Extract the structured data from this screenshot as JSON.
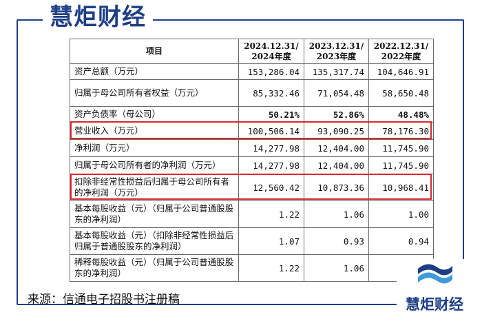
{
  "logo": {
    "text": "慧炬财经"
  },
  "source_caption": "来源：信通电子招股书注册稿",
  "table": {
    "header": {
      "item": "项目",
      "col1": "2024.12.31/\n2024年度",
      "col2": "2023.12.31/\n2023年度",
      "col3": "2022.12.31/\n2022年度"
    },
    "rows": [
      {
        "label": "资产总额（万元）",
        "v": [
          "153,286.04",
          "135,317.74",
          "104,646.91"
        ]
      },
      {
        "label": "归属于母公司所有者权益（万元）",
        "v": [
          "85,332.46",
          "71,054.48",
          "58,650.48"
        ]
      },
      {
        "label": "资产负债率（母公司）",
        "v": [
          "50.21%",
          "52.86%",
          "48.48%"
        ]
      },
      {
        "label": "营业收入（万元）",
        "v": [
          "100,506.14",
          "93,090.25",
          "78,176.30"
        ]
      },
      {
        "label": "净利润（万元）",
        "v": [
          "14,277.98",
          "12,404.00",
          "11,745.90"
        ]
      },
      {
        "label": "归属于母公司所有者的净利润（万元）",
        "v": [
          "14,277.98",
          "12,404.00",
          "11,745.90"
        ]
      },
      {
        "label": "扣除非经常性损益后归属于母公司所有者的净利润（万元）",
        "v": [
          "12,560.42",
          "10,873.36",
          "10,968.41"
        ]
      },
      {
        "label": "基本每股收益（元）（归属于公司普通股股东的净利润）",
        "v": [
          "1.22",
          "1.06",
          "1.00"
        ]
      },
      {
        "label": "基本每股收益（元）（扣除非经常性损益后归属于普通股股东的净利润）",
        "v": [
          "1.07",
          "0.93",
          "0.94"
        ]
      },
      {
        "label": "稀释每股收益（元）（归属于公司普通股股东的净利润）",
        "v": [
          "1.22",
          "1.06",
          "1.00"
        ]
      }
    ]
  },
  "colors": {
    "brand_blue": "#1e3f86",
    "highlight_red": "#d9262f"
  }
}
